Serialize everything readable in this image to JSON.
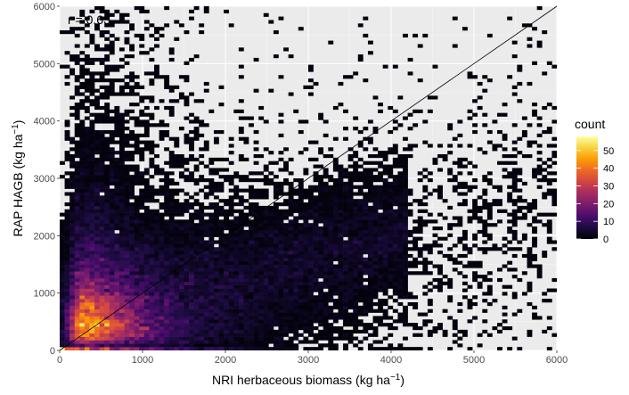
{
  "chart_data": {
    "type": "heatmap",
    "subtype": "2d-bin-count",
    "xlabel": "NRI herbaceous biomass (kg ha",
    "xlabel_sup": "−1",
    "xlabel_end": ")",
    "ylabel": "RAP HAGB (kg ha",
    "ylabel_sup": "−1",
    "ylabel_end": ")",
    "xlim": [
      0,
      6000
    ],
    "ylim": [
      0,
      6000
    ],
    "x_ticks": [
      0,
      1000,
      2000,
      3000,
      4000,
      5000,
      6000
    ],
    "y_ticks": [
      0,
      1000,
      2000,
      3000,
      4000,
      5000,
      6000
    ],
    "x_tick_labels": [
      "0",
      "1000",
      "2000",
      "3000",
      "4000",
      "5000",
      "6000"
    ],
    "y_tick_labels": [
      "0",
      "1000",
      "2000",
      "3000",
      "4000",
      "5000",
      "6000"
    ],
    "grid": true,
    "reference_line": "1:1",
    "annotation": "r = 0.63",
    "bin_width": 60,
    "legend": {
      "title": "count",
      "position": "right",
      "min": 0,
      "max": 58,
      "ticks": [
        0,
        10,
        20,
        30,
        40,
        50
      ],
      "tick_labels": [
        "0",
        "10",
        "20",
        "30",
        "40",
        "50"
      ],
      "colors": [
        "#000004",
        "#1b0c41",
        "#4a0c6b",
        "#781c6d",
        "#a52c60",
        "#cf4446",
        "#ed6925",
        "#fb9b06",
        "#f7d13d",
        "#fcffa4"
      ]
    },
    "density_model": {
      "mode": [
        150,
        250
      ],
      "r": 0.63,
      "peak_count": 58
    }
  }
}
